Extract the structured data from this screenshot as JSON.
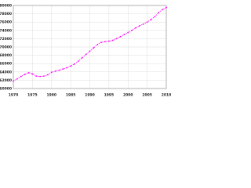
{
  "chart_data": {
    "type": "line",
    "x": [
      1970,
      1971,
      1972,
      1973,
      1974,
      1975,
      1976,
      1977,
      1978,
      1979,
      1980,
      1981,
      1982,
      1983,
      1984,
      1985,
      1986,
      1987,
      1988,
      1989,
      1990,
      1991,
      1992,
      1993,
      1994,
      1995,
      1996,
      1997,
      1998,
      1999,
      2000,
      2001,
      2002,
      2003,
      2004,
      2005,
      2006,
      2007,
      2008,
      2009,
      2010
    ],
    "series": [
      {
        "color": "#ff00ff",
        "values": [
          61800,
          62300,
          62900,
          63400,
          63800,
          63500,
          63000,
          62900,
          63000,
          63300,
          63900,
          64200,
          64400,
          64700,
          65000,
          65400,
          65900,
          66600,
          67400,
          68200,
          69000,
          69800,
          70600,
          71100,
          71300,
          71400,
          71600,
          72000,
          72500,
          73000,
          73500,
          74000,
          74600,
          75100,
          75500,
          76000,
          76600,
          77300,
          78300,
          79000,
          79500
        ]
      }
    ],
    "xlim": [
      1970,
      2010
    ],
    "xticks": [
      1970,
      1975,
      1980,
      1985,
      1990,
      1995,
      2000,
      2005,
      2010
    ],
    "ylim": [
      60000,
      80000
    ],
    "yticks": [
      60000,
      62000,
      64000,
      66000,
      68000,
      70000,
      72000,
      74000,
      76000,
      78000,
      80000
    ],
    "grid": true
  }
}
